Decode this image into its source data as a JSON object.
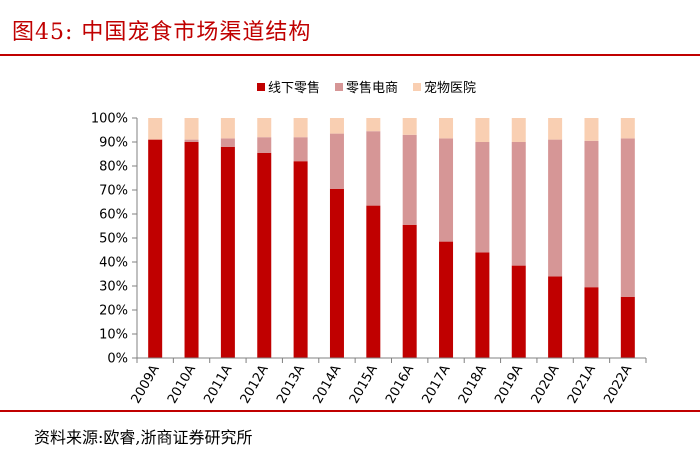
{
  "header": {
    "title": "图45:   中国宠食市场渠道结构"
  },
  "footer": {
    "source": "资料来源:欧睿,浙商证券研究所"
  },
  "colors": {
    "accent": "#c00000",
    "offline": "#c00000",
    "ecommerce": "#d69696",
    "hospital": "#f9cfb2",
    "axis": "#808080"
  },
  "chart_data": {
    "type": "bar",
    "stacked": true,
    "percent": true,
    "categories": [
      "2009A",
      "2010A",
      "2011A",
      "2012A",
      "2013A",
      "2014A",
      "2015A",
      "2016A",
      "2017A",
      "2018A",
      "2019A",
      "2020A",
      "2021A",
      "2022A"
    ],
    "series": [
      {
        "name": "线下零售",
        "color": "#c00000",
        "values": [
          91,
          90,
          88,
          85.5,
          82,
          70.5,
          63.5,
          55.5,
          48.5,
          44,
          38.5,
          34,
          29.5,
          25.5
        ]
      },
      {
        "name": "零售电商",
        "color": "#d69696",
        "values": [
          0,
          1,
          3.5,
          6.5,
          10,
          23,
          31,
          37.5,
          43,
          46,
          51.5,
          57,
          61,
          66
        ]
      },
      {
        "name": "宠物医院",
        "color": "#f9cfb2",
        "values": [
          9,
          9,
          8.5,
          8,
          8,
          6.5,
          5.5,
          7,
          8.5,
          10,
          10,
          9,
          9.5,
          8.5
        ]
      }
    ],
    "ylim": [
      0,
      100
    ],
    "yticks": [
      "0%",
      "10%",
      "20%",
      "30%",
      "40%",
      "50%",
      "60%",
      "70%",
      "80%",
      "90%",
      "100%"
    ],
    "legend": "top-center",
    "grid": false
  }
}
